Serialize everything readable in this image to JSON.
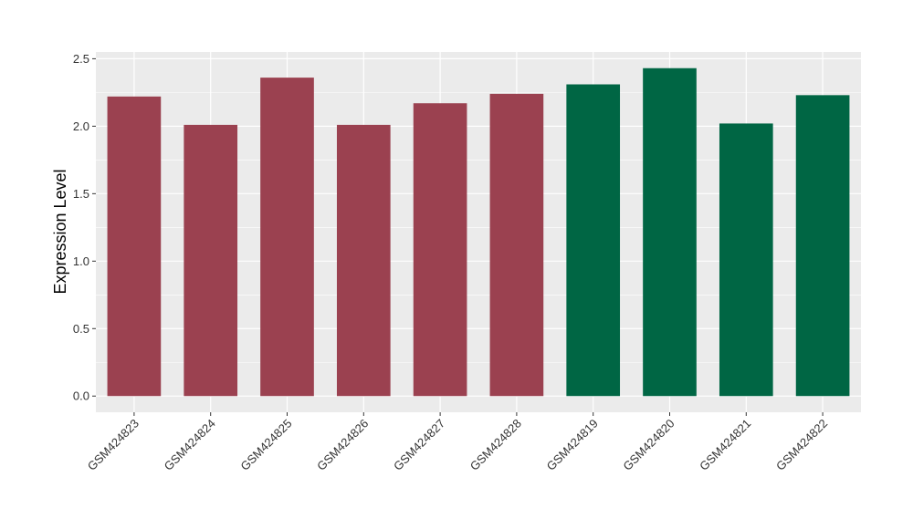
{
  "chart_data": {
    "type": "bar",
    "title": "",
    "xlabel": "",
    "ylabel": "Expression Level",
    "ylim": [
      -0.12,
      2.55
    ],
    "yticks": [
      "0.0",
      "0.5",
      "1.0",
      "1.5",
      "2.0",
      "2.5"
    ],
    "grid": true,
    "legend": "none",
    "categories": [
      "GSM424823",
      "GSM424824",
      "GSM424825",
      "GSM424826",
      "GSM424827",
      "GSM424828",
      "GSM424819",
      "GSM424820",
      "GSM424821",
      "GSM424822"
    ],
    "values": [
      2.22,
      2.01,
      2.36,
      2.01,
      2.17,
      2.24,
      2.31,
      2.43,
      2.02,
      2.23
    ],
    "bar_colors": [
      "#9b4150",
      "#9b4150",
      "#9b4150",
      "#9b4150",
      "#9b4150",
      "#9b4150",
      "#006644",
      "#006644",
      "#006644",
      "#006644"
    ],
    "panel_color": "#ebebeb",
    "grid_color": "#ffffff"
  }
}
